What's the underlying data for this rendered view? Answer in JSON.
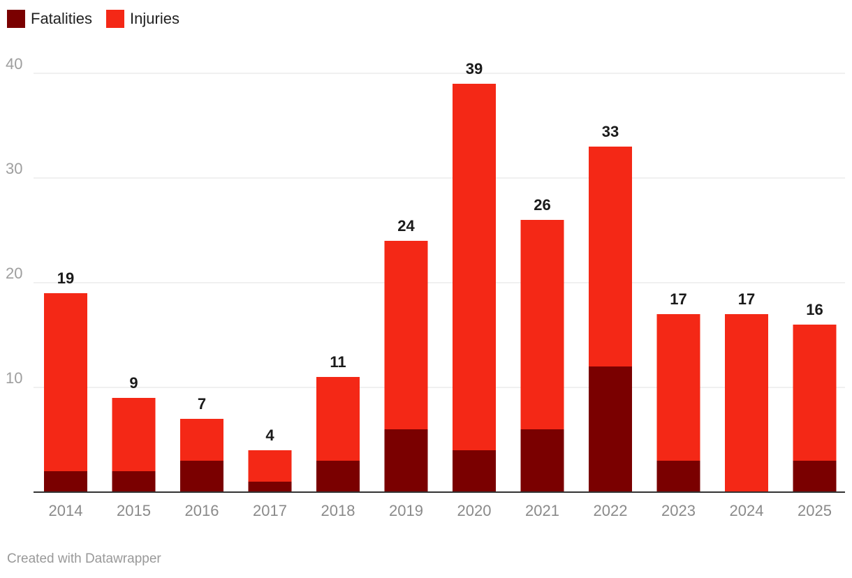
{
  "chart_data": {
    "type": "bar",
    "stacked": true,
    "categories": [
      "2014",
      "2015",
      "2016",
      "2017",
      "2018",
      "2019",
      "2020",
      "2021",
      "2022",
      "2023",
      "2024",
      "2025"
    ],
    "series": [
      {
        "name": "Fatalities",
        "color": "#7a0000",
        "values": [
          2,
          2,
          3,
          1,
          3,
          6,
          4,
          6,
          12,
          3,
          0,
          3
        ]
      },
      {
        "name": "Injuries",
        "color": "#f42816",
        "values": [
          17,
          7,
          4,
          3,
          8,
          18,
          35,
          20,
          21,
          14,
          17,
          13
        ]
      }
    ],
    "totals": [
      19,
      9,
      7,
      4,
      11,
      24,
      39,
      26,
      33,
      17,
      17,
      16
    ],
    "ylim": [
      0,
      40
    ],
    "yticks": [
      10,
      20,
      30,
      40
    ],
    "grid": true,
    "legend_position": "top-left",
    "title": "",
    "xlabel": "",
    "ylabel": ""
  },
  "footer": {
    "credit": "Created with Datawrapper"
  }
}
